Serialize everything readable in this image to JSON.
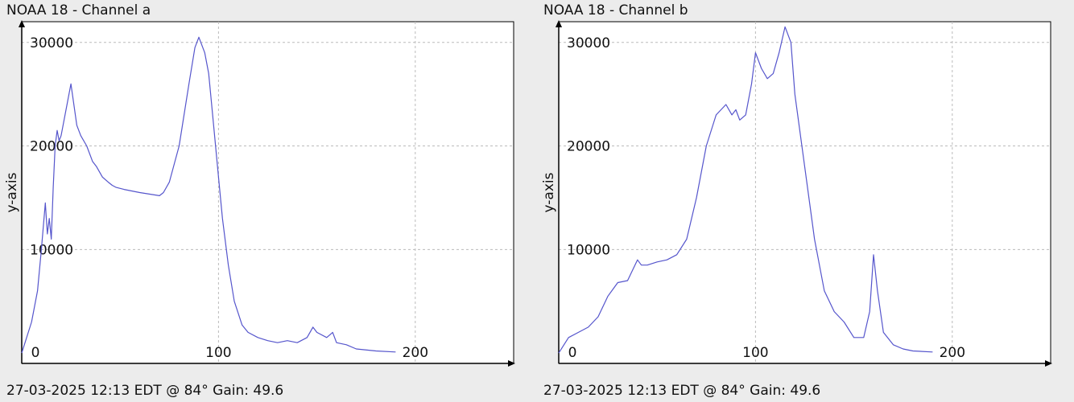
{
  "panels": [
    {
      "title": "NOAA 18 - Channel a",
      "footer": "27-03-2025 12:13 EDT @ 84° Gain: 49.6"
    },
    {
      "title": "NOAA 18 - Channel b",
      "footer": "27-03-2025 12:13 EDT @ 84° Gain: 49.6"
    }
  ],
  "colors": {
    "series": "#5555cc",
    "grid": "#bbbbbb",
    "axis": "#000000",
    "plot_bg": "#ffffff"
  },
  "chart_data": [
    {
      "type": "line",
      "title": "NOAA 18 - Channel a",
      "xlabel": "",
      "ylabel": "y-axis",
      "xlim": [
        0,
        250
      ],
      "ylim": [
        -1000,
        32000
      ],
      "xticks": [
        0,
        100,
        200
      ],
      "yticks": [
        10000,
        20000,
        30000
      ],
      "grid": true,
      "series": [
        {
          "x": [
            0,
            5,
            8,
            10,
            12,
            13,
            14,
            15,
            16,
            17,
            18,
            19,
            20,
            22,
            25,
            28,
            30,
            33,
            36,
            38,
            41,
            44,
            46,
            48,
            52,
            60,
            70,
            72,
            75,
            80,
            85,
            88,
            90,
            93,
            95,
            97,
            100,
            102,
            105,
            108,
            112,
            115,
            120,
            125,
            130,
            135,
            140,
            145,
            148,
            150,
            155,
            158,
            160,
            165,
            170,
            180,
            190
          ],
          "y": [
            0,
            3000,
            6000,
            10000,
            14500,
            11500,
            13000,
            11000,
            16000,
            20000,
            21500,
            20500,
            21000,
            23000,
            26000,
            22000,
            21000,
            20000,
            18500,
            18000,
            17000,
            16500,
            16200,
            16000,
            15800,
            15500,
            15200,
            15500,
            16500,
            20000,
            26000,
            29500,
            30500,
            29000,
            27000,
            23000,
            17000,
            13000,
            8500,
            5000,
            2700,
            2000,
            1500,
            1200,
            1000,
            1200,
            1000,
            1500,
            2500,
            2000,
            1500,
            2000,
            1000,
            800,
            400,
            200,
            100
          ]
        }
      ]
    },
    {
      "type": "line",
      "title": "NOAA 18 - Channel b",
      "xlabel": "",
      "ylabel": "y-axis",
      "xlim": [
        0,
        250
      ],
      "ylim": [
        -1000,
        32000
      ],
      "xticks": [
        0,
        100,
        200
      ],
      "yticks": [
        10000,
        20000,
        30000
      ],
      "grid": true,
      "series": [
        {
          "x": [
            0,
            5,
            10,
            15,
            20,
            25,
            30,
            35,
            40,
            42,
            45,
            50,
            55,
            60,
            65,
            70,
            75,
            80,
            85,
            88,
            90,
            92,
            95,
            98,
            100,
            103,
            106,
            109,
            112,
            115,
            118,
            120,
            125,
            130,
            135,
            140,
            145,
            150,
            155,
            158,
            160,
            162,
            165,
            170,
            175,
            180,
            190
          ],
          "y": [
            0,
            1500,
            2000,
            2500,
            3500,
            5500,
            6800,
            7000,
            9000,
            8500,
            8500,
            8800,
            9000,
            9500,
            11000,
            15000,
            20000,
            23000,
            24000,
            23000,
            23500,
            22500,
            23000,
            26000,
            29000,
            27500,
            26500,
            27000,
            29000,
            31500,
            30000,
            25000,
            18000,
            11000,
            6000,
            4000,
            3000,
            1500,
            1500,
            4000,
            9500,
            6000,
            2000,
            800,
            400,
            200,
            100
          ]
        }
      ]
    }
  ]
}
